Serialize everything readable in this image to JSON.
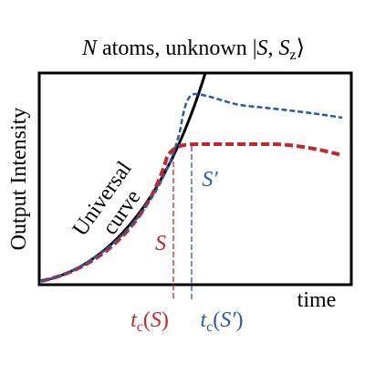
{
  "title": [
    "N",
    " atoms, unknown |",
    "S",
    ", ",
    "S",
    "z",
    "⟩"
  ],
  "y_label": "Output Intensity",
  "x_label": "time",
  "curve_label": [
    "Universal",
    "curve"
  ],
  "s_label": "S",
  "s_prime_label": "S′",
  "tc_s": [
    "t",
    "c",
    "(",
    "S",
    ")"
  ],
  "tc_s_prime": [
    "t",
    "c",
    "(",
    "S′",
    ")"
  ]
}
